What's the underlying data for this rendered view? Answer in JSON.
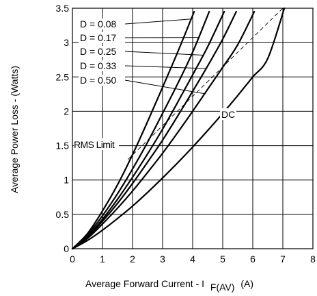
{
  "chart_data": {
    "type": "line",
    "title": "",
    "xlabel_main": "Average Forward Current - I",
    "xlabel_sub": "F(AV)",
    "xlabel_unit": "(A)",
    "ylabel": "Average Power Loss - (Watts)",
    "xlim": [
      0,
      8
    ],
    "ylim": [
      0,
      3.5
    ],
    "x_ticks": [
      "0",
      "1",
      "2",
      "3",
      "4",
      "5",
      "6",
      "7",
      "8"
    ],
    "y_ticks": [
      "0",
      "0.5",
      "1",
      "1.5",
      "2",
      "2.5",
      "3",
      "3.5"
    ],
    "grid": true,
    "series": [
      {
        "name": "D = 0.08",
        "x": [
          0,
          0.5,
          1,
          1.5,
          2,
          2.5,
          3,
          3.5,
          4.05
        ],
        "y": [
          0,
          0.22,
          0.55,
          0.93,
          1.37,
          1.85,
          2.35,
          2.86,
          3.45
        ]
      },
      {
        "name": "D = 0.17",
        "x": [
          0,
          0.5,
          1,
          1.5,
          2,
          2.5,
          3,
          3.5,
          4,
          4.55
        ],
        "y": [
          0,
          0.2,
          0.48,
          0.8,
          1.16,
          1.55,
          1.97,
          2.4,
          2.86,
          3.45
        ]
      },
      {
        "name": "D = 0.25",
        "x": [
          0,
          0.5,
          1,
          1.5,
          2,
          2.5,
          3,
          3.5,
          4,
          4.5,
          5.05
        ],
        "y": [
          0,
          0.18,
          0.43,
          0.72,
          1.04,
          1.38,
          1.74,
          2.13,
          2.53,
          2.94,
          3.45
        ]
      },
      {
        "name": "D = 0.33",
        "x": [
          0,
          0.5,
          1,
          1.5,
          2,
          2.5,
          3,
          3.5,
          4,
          4.5,
          5,
          5.45
        ],
        "y": [
          0,
          0.17,
          0.4,
          0.66,
          0.95,
          1.26,
          1.58,
          1.93,
          2.29,
          2.66,
          3.05,
          3.45
        ]
      },
      {
        "name": "D = 0.50",
        "x": [
          0,
          0.5,
          1,
          1.5,
          2,
          2.5,
          3,
          3.5,
          4,
          4.5,
          5,
          5.5,
          6.05
        ],
        "y": [
          0,
          0.15,
          0.36,
          0.59,
          0.84,
          1.11,
          1.39,
          1.69,
          2.0,
          2.32,
          2.64,
          2.97,
          3.45
        ]
      },
      {
        "name": "DC",
        "x": [
          0,
          0.5,
          1,
          1.5,
          2,
          2.5,
          3,
          3.5,
          4,
          4.5,
          5,
          5.5,
          6,
          6.5,
          7.05
        ],
        "y": [
          0,
          0.12,
          0.27,
          0.44,
          0.62,
          0.82,
          1.03,
          1.25,
          1.48,
          1.72,
          1.97,
          2.23,
          2.5,
          2.77,
          3.5
        ]
      }
    ],
    "rms_limit": {
      "label": "RMS Limit",
      "x": [
        1.85,
        7.0
      ],
      "y": [
        1.3,
        3.5
      ]
    },
    "annotations": [
      {
        "text": "D = 0.08",
        "target_series": "D = 0.08",
        "target_x": 3.95
      },
      {
        "text": "D = 0.17",
        "target_series": "D = 0.17",
        "target_x": 4.2
      },
      {
        "text": "D = 0.25",
        "target_series": "D = 0.25",
        "target_x": 4.35
      },
      {
        "text": "D = 0.33",
        "target_series": "D = 0.33",
        "target_x": 4.45
      },
      {
        "text": "D = 0.50",
        "target_series": "D = 0.50",
        "target_x": 4.4
      },
      {
        "text": "DC"
      },
      {
        "text": "RMS Limit"
      }
    ]
  }
}
